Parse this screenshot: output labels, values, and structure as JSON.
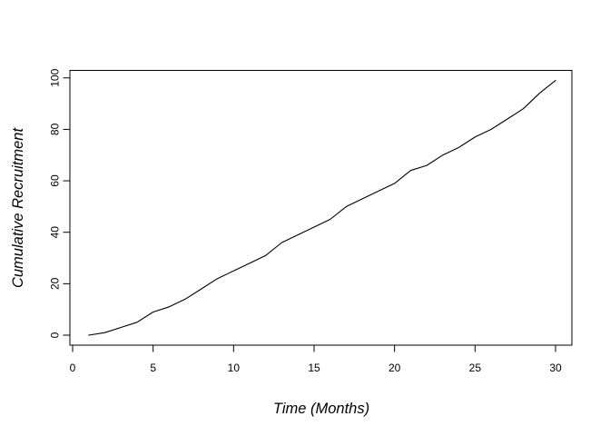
{
  "figure": {
    "background": "#ffffff",
    "line_color": "#000000",
    "text_color": "#000000"
  },
  "chart_data": {
    "type": "line",
    "title": "",
    "xlabel": "Time (Months)",
    "ylabel": "Cumulative Recruitment",
    "x_ticks": [
      0,
      5,
      10,
      15,
      20,
      25,
      30
    ],
    "y_ticks": [
      0,
      20,
      40,
      60,
      80,
      100
    ],
    "xlim": [
      0,
      31
    ],
    "ylim": [
      0,
      103
    ],
    "grid": false,
    "legend": "none",
    "x": [
      1,
      2,
      3,
      4,
      5,
      6,
      7,
      8,
      9,
      10,
      11,
      12,
      13,
      14,
      15,
      16,
      17,
      18,
      19,
      20,
      21,
      22,
      23,
      24,
      25,
      26,
      27,
      28,
      29,
      30
    ],
    "series": [
      {
        "name": "cumulative-recruitment",
        "values": [
          0,
          1,
          3,
          5,
          9,
          11,
          14,
          18,
          22,
          25,
          28,
          31,
          36,
          39,
          42,
          45,
          50,
          53,
          56,
          59,
          64,
          66,
          70,
          73,
          77,
          80,
          84,
          88,
          94,
          99
        ]
      }
    ]
  }
}
